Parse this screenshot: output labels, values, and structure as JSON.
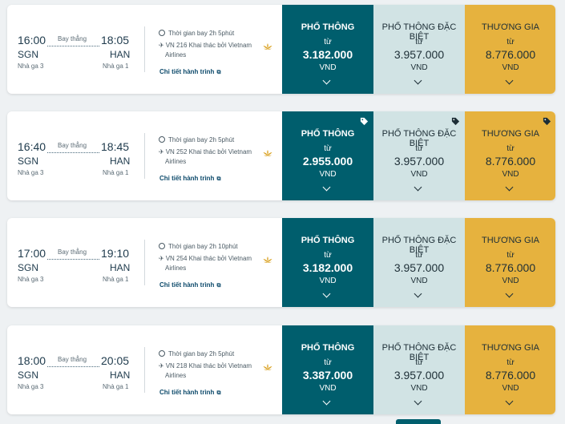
{
  "colors": {
    "economy_bg": "#005e6d",
    "deluxe_bg": "#d1e3e4",
    "business_bg": "#e6b23e",
    "card_bg": "#ffffff",
    "page_bg": "#eef1f3"
  },
  "fare_labels": {
    "economy": "PHỔ THÔNG",
    "deluxe": "PHỔ THÔNG ĐẶC BIỆT",
    "business": "THƯƠNG GIA",
    "from": "từ",
    "currency": "VND"
  },
  "flights": [
    {
      "dep_time": "16:00",
      "dep_code": "SGN",
      "dep_terminal": "Nhà ga 3",
      "arr_time": "18:05",
      "arr_code": "HAN",
      "arr_terminal": "Nhà ga 1",
      "route_type": "Bay thẳng",
      "duration": "Thời gian bay 2h 5phút",
      "flight_operator": "VN 216 Khai thác bởi Vietnam",
      "airline_line2": "Airlines",
      "details_link": "Chi tiết hành trình",
      "economy_price": "3.182.000",
      "deluxe_price": "3.957.000",
      "business_price": "8.776.000",
      "tags": false
    },
    {
      "dep_time": "16:40",
      "dep_code": "SGN",
      "dep_terminal": "Nhà ga 3",
      "arr_time": "18:45",
      "arr_code": "HAN",
      "arr_terminal": "Nhà ga 1",
      "route_type": "Bay thẳng",
      "duration": "Thời gian bay 2h 5phút",
      "flight_operator": "VN 252 Khai thác bởi Vietnam",
      "airline_line2": "Airlines",
      "details_link": "Chi tiết hành trình",
      "economy_price": "2.955.000",
      "deluxe_price": "3.957.000",
      "business_price": "8.776.000",
      "tags": true
    },
    {
      "dep_time": "17:00",
      "dep_code": "SGN",
      "dep_terminal": "Nhà ga 3",
      "arr_time": "19:10",
      "arr_code": "HAN",
      "arr_terminal": "Nhà ga 1",
      "route_type": "Bay thẳng",
      "duration": "Thời gian bay 2h 10phút",
      "flight_operator": "VN 254 Khai thác bởi Vietnam",
      "airline_line2": "Airlines",
      "details_link": "Chi tiết hành trình",
      "economy_price": "3.182.000",
      "deluxe_price": "3.957.000",
      "business_price": "8.776.000",
      "tags": false
    },
    {
      "dep_time": "18:00",
      "dep_code": "SGN",
      "dep_terminal": "Nhà ga 3",
      "arr_time": "20:05",
      "arr_code": "HAN",
      "arr_terminal": "Nhà ga 1",
      "route_type": "Bay thẳng",
      "duration": "Thời gian bay 2h 5phút",
      "flight_operator": "VN 218 Khai thác bởi Vietnam",
      "airline_line2": "Airlines",
      "details_link": "Chi tiết hành trình",
      "economy_price": "3.387.000",
      "deluxe_price": "3.957.000",
      "business_price": "8.776.000",
      "tags": false
    }
  ]
}
